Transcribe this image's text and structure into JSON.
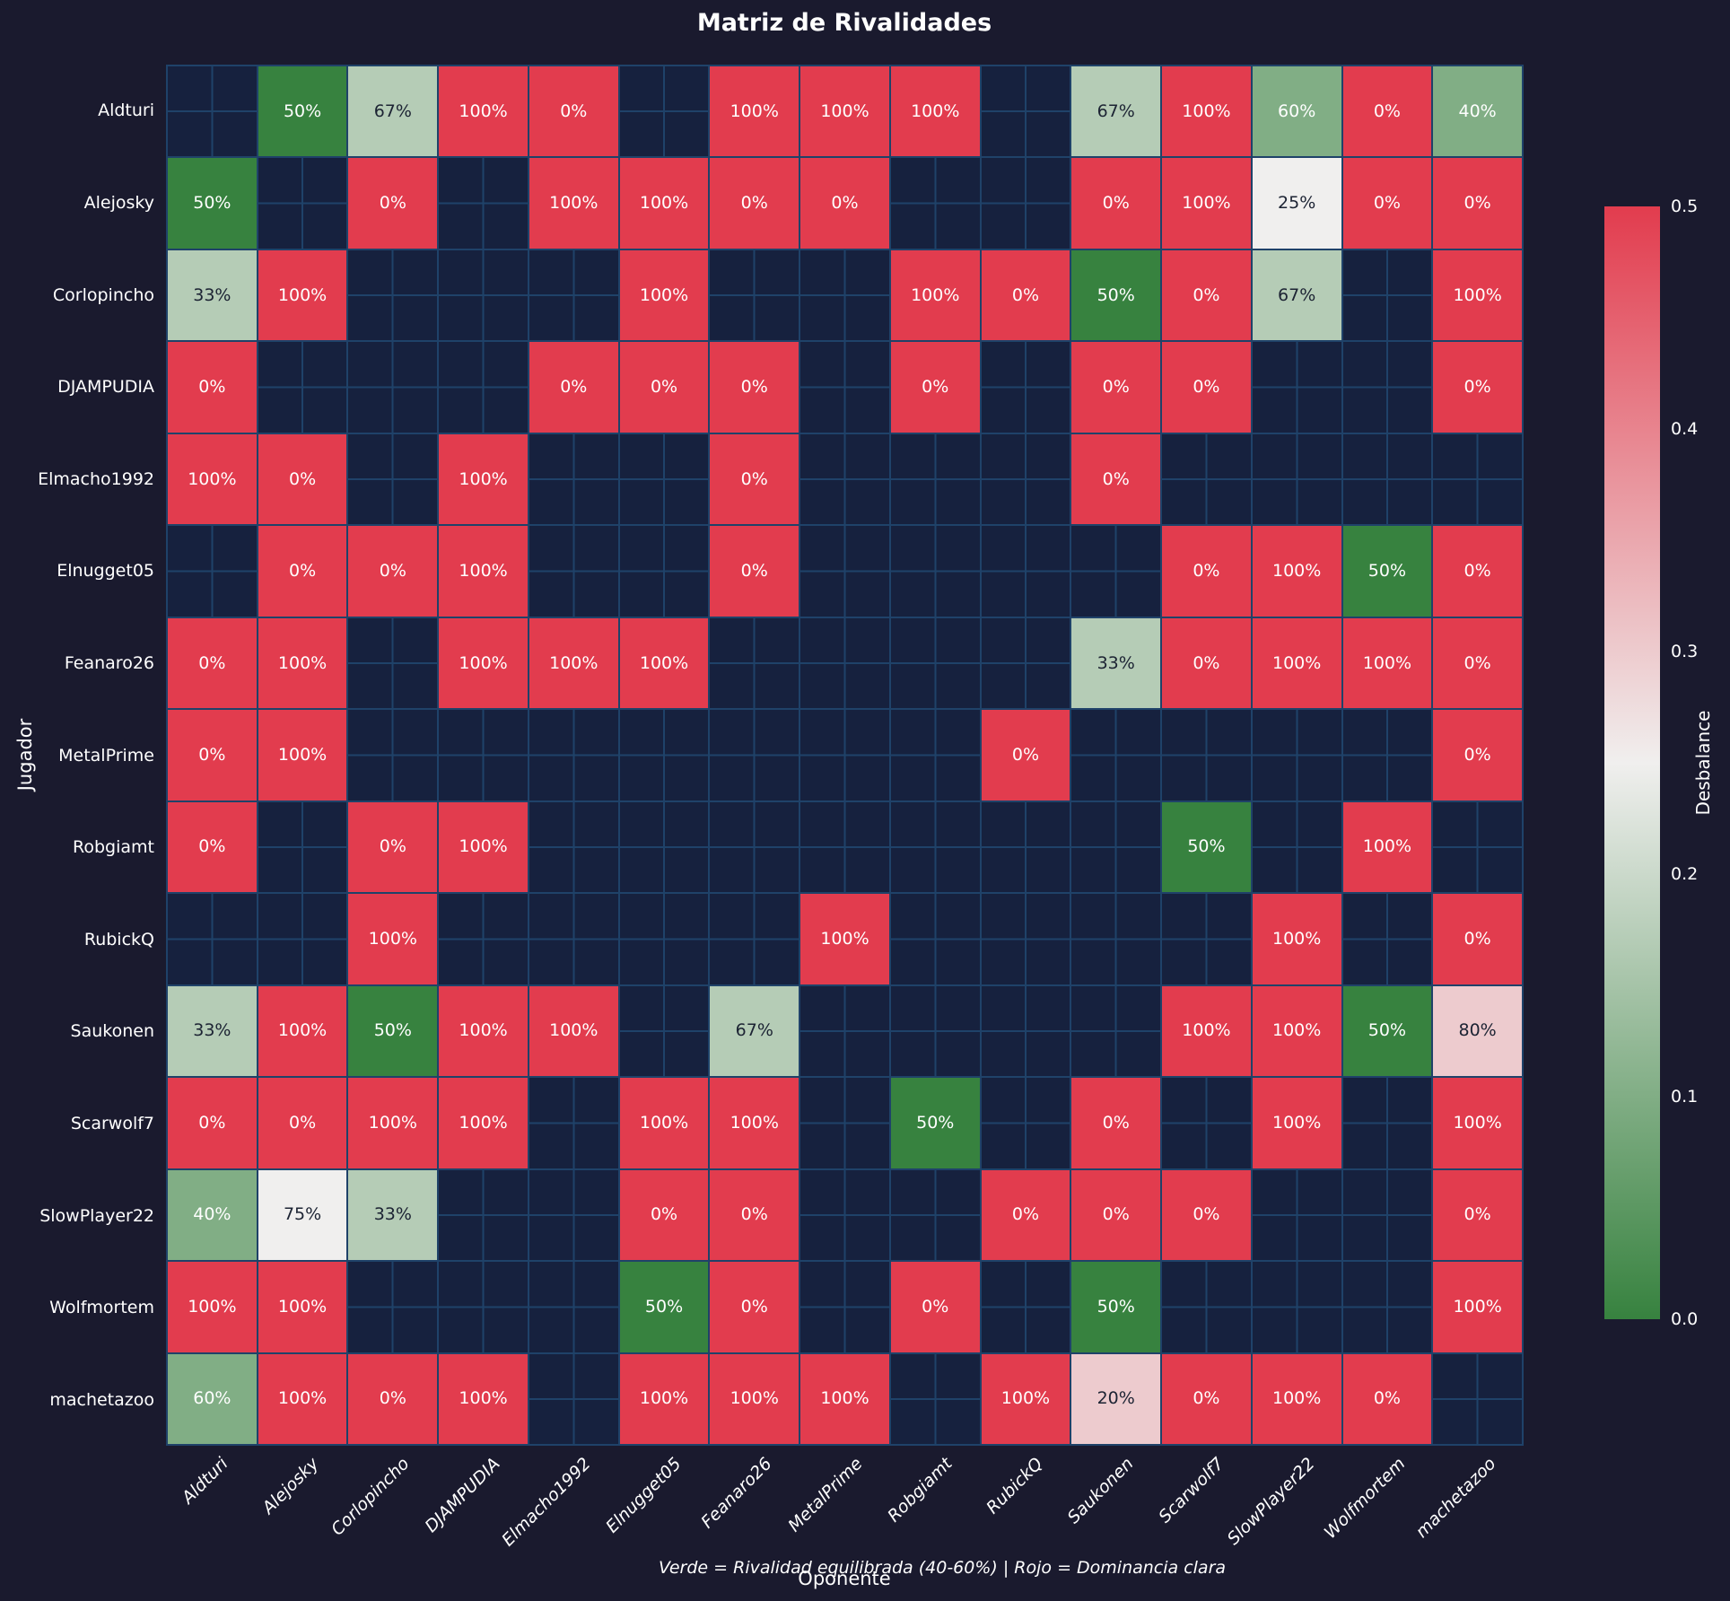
{
  "title": "Matriz de Rivalidades",
  "axes": {
    "x_label": "Oponente",
    "y_label": "Jugador"
  },
  "caption": "Verde = Rivalidad equilibrada (40-60%) | Rojo = Dominancia clara",
  "colorbar": {
    "label": "Desbalance",
    "ticks": [
      "0.5",
      "0.4",
      "0.3",
      "0.2",
      "0.1",
      "0.0"
    ]
  },
  "colors": {
    "background": "#1a1a2e",
    "empty_cell": "#16213e",
    "gridline": "#1f4269",
    "scale_green_low": "#37823f",
    "scale_white_mid": "#f0efee",
    "scale_red_high": "#e23c4e",
    "text_light": "#ffffff",
    "text_dark": "#1c2333"
  },
  "chart_data": {
    "type": "heatmap",
    "title": "Matriz de Rivalidades",
    "xlabel": "Oponente",
    "ylabel": "Jugador",
    "legend_note": "Verde = Rivalidad equilibrada (40-60%) | Rojo = Dominancia clara",
    "colorbar_label": "Desbalance",
    "colorbar_range": [
      0.0,
      0.5
    ],
    "color_encoding": "desbalance = |value_pct - 50| / 100; 0.0 = dark green, 0.25 = white, 0.5 = red; empty = no rivalry data",
    "cell_label_format": "percent",
    "x_categories": [
      "Aldturi",
      "Alejosky",
      "Corlopincho",
      "DJAMPUDIA",
      "Elmacho1992",
      "Elnugget05",
      "Feanaro26",
      "MetalPrime",
      "Robgiamt",
      "RubickQ",
      "Saukonen",
      "Scarwolf7",
      "SlowPlayer22",
      "Wolfmortem",
      "machetazoo"
    ],
    "y_categories": [
      "Aldturi",
      "Alejosky",
      "Corlopincho",
      "DJAMPUDIA",
      "Elmacho1992",
      "Elnugget05",
      "Feanaro26",
      "MetalPrime",
      "Robgiamt",
      "RubickQ",
      "Saukonen",
      "Scarwolf7",
      "SlowPlayer22",
      "Wolfmortem",
      "machetazoo"
    ],
    "values_pct": [
      [
        null,
        50,
        67,
        100,
        0,
        null,
        100,
        100,
        100,
        null,
        67,
        100,
        60,
        0,
        40
      ],
      [
        50,
        null,
        0,
        null,
        100,
        100,
        0,
        0,
        null,
        null,
        0,
        100,
        25,
        0,
        0
      ],
      [
        33,
        100,
        null,
        null,
        null,
        100,
        null,
        null,
        100,
        0,
        50,
        0,
        67,
        null,
        100
      ],
      [
        0,
        null,
        null,
        null,
        0,
        0,
        0,
        null,
        0,
        null,
        0,
        0,
        null,
        null,
        0
      ],
      [
        100,
        0,
        null,
        100,
        null,
        null,
        0,
        null,
        null,
        null,
        0,
        null,
        null,
        null,
        null
      ],
      [
        null,
        0,
        0,
        100,
        null,
        null,
        0,
        null,
        null,
        null,
        null,
        0,
        100,
        50,
        0
      ],
      [
        0,
        100,
        null,
        100,
        100,
        100,
        null,
        null,
        null,
        null,
        33,
        0,
        100,
        100,
        0
      ],
      [
        0,
        100,
        null,
        null,
        null,
        null,
        null,
        null,
        null,
        0,
        null,
        null,
        null,
        null,
        0
      ],
      [
        0,
        null,
        0,
        100,
        null,
        null,
        null,
        null,
        null,
        null,
        null,
        50,
        null,
        100,
        null
      ],
      [
        null,
        null,
        100,
        null,
        null,
        null,
        null,
        100,
        null,
        null,
        null,
        null,
        100,
        null,
        0
      ],
      [
        33,
        100,
        50,
        100,
        100,
        null,
        67,
        null,
        null,
        null,
        null,
        100,
        100,
        50,
        80
      ],
      [
        0,
        0,
        100,
        100,
        null,
        100,
        100,
        null,
        50,
        null,
        0,
        null,
        100,
        null,
        100
      ],
      [
        40,
        75,
        33,
        null,
        null,
        0,
        0,
        null,
        null,
        0,
        0,
        0,
        null,
        null,
        0
      ],
      [
        100,
        100,
        null,
        null,
        null,
        50,
        0,
        null,
        0,
        null,
        50,
        null,
        null,
        null,
        100
      ],
      [
        60,
        100,
        0,
        100,
        null,
        100,
        100,
        100,
        null,
        100,
        20,
        0,
        100,
        0,
        null
      ]
    ]
  }
}
